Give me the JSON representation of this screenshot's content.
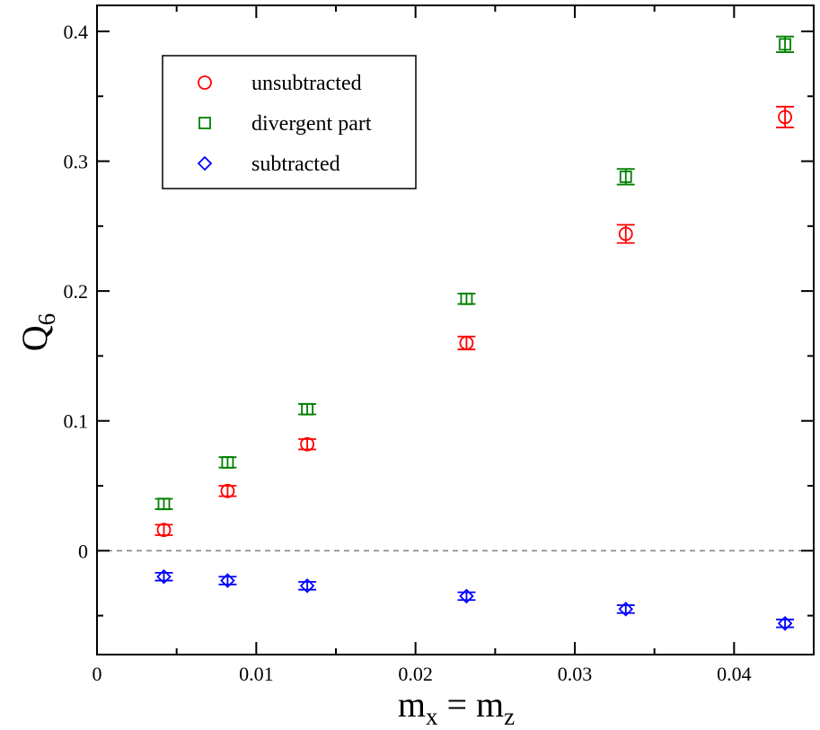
{
  "chart_data": {
    "type": "scatter",
    "xlabel_main": "m",
    "xlabel_sub1": "x",
    "xlabel_mid": " = m",
    "xlabel_sub2": "z",
    "ylabel_main": "Q",
    "ylabel_sub": "6",
    "xlim": [
      0,
      0.045
    ],
    "ylim": [
      -0.08,
      0.42
    ],
    "x_ticks": [
      {
        "value": 0,
        "label": "0"
      },
      {
        "value": 0.01,
        "label": "0.01"
      },
      {
        "value": 0.02,
        "label": "0.02"
      },
      {
        "value": 0.03,
        "label": "0.03"
      },
      {
        "value": 0.04,
        "label": "0.04"
      }
    ],
    "y_ticks": [
      {
        "value": 0,
        "label": "0"
      },
      {
        "value": 0.1,
        "label": "0.1"
      },
      {
        "value": 0.2,
        "label": "0.2"
      },
      {
        "value": 0.3,
        "label": "0.3"
      },
      {
        "value": 0.4,
        "label": "0.4"
      }
    ],
    "zero_line": true,
    "legend_position": "top-left",
    "series": [
      {
        "name": "unsubtracted",
        "marker": "circle",
        "color": "#ff0000",
        "points": [
          {
            "x": 0.0042,
            "y": 0.016,
            "err": 0.004
          },
          {
            "x": 0.0082,
            "y": 0.046,
            "err": 0.004
          },
          {
            "x": 0.0132,
            "y": 0.082,
            "err": 0.004
          },
          {
            "x": 0.0232,
            "y": 0.16,
            "err": 0.005
          },
          {
            "x": 0.0332,
            "y": 0.244,
            "err": 0.007
          },
          {
            "x": 0.0432,
            "y": 0.334,
            "err": 0.008
          }
        ]
      },
      {
        "name": "divergent part",
        "marker": "square",
        "color": "#008000",
        "points": [
          {
            "x": 0.0042,
            "y": 0.036,
            "err": 0.004
          },
          {
            "x": 0.0082,
            "y": 0.068,
            "err": 0.004
          },
          {
            "x": 0.0132,
            "y": 0.109,
            "err": 0.004
          },
          {
            "x": 0.0232,
            "y": 0.194,
            "err": 0.004
          },
          {
            "x": 0.0332,
            "y": 0.288,
            "err": 0.006
          },
          {
            "x": 0.0432,
            "y": 0.39,
            "err": 0.006
          }
        ]
      },
      {
        "name": "subtracted",
        "marker": "diamond",
        "color": "#0000ff",
        "points": [
          {
            "x": 0.0042,
            "y": -0.02,
            "err": 0.003
          },
          {
            "x": 0.0082,
            "y": -0.023,
            "err": 0.003
          },
          {
            "x": 0.0132,
            "y": -0.027,
            "err": 0.003
          },
          {
            "x": 0.0232,
            "y": -0.035,
            "err": 0.003
          },
          {
            "x": 0.0332,
            "y": -0.045,
            "err": 0.003
          },
          {
            "x": 0.0432,
            "y": -0.056,
            "err": 0.003
          }
        ]
      }
    ]
  }
}
